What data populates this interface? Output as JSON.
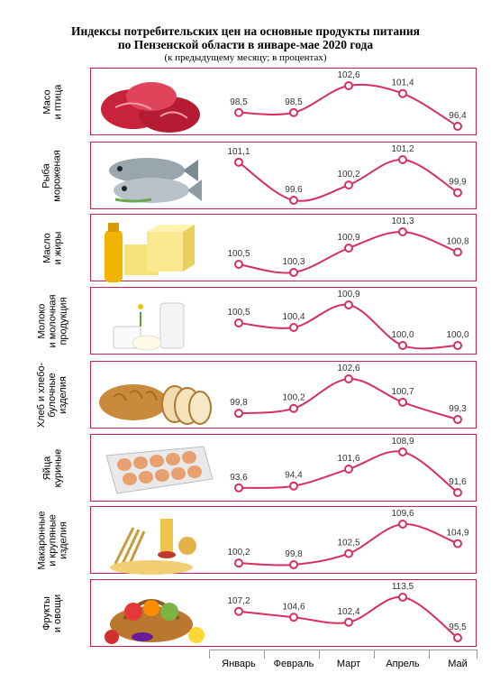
{
  "title_line1": "Индексы потребительских цен на основные продукты питания",
  "title_line2": "по Пензенской области в январе-мае 2020 года",
  "subtitle": "(к предыдущему месяцу; в процентах)",
  "colors": {
    "line": "#d6305f",
    "border": "#c8234f"
  },
  "chart_data": {
    "type": "line",
    "categories": [
      "Январь",
      "Февраль",
      "Март",
      "Апрель",
      "Май"
    ],
    "series": [
      {
        "name": "Масо\nи птица",
        "values": [
          98.5,
          98.5,
          102.6,
          101.4,
          96.4
        ],
        "labels": [
          "98,5",
          "98,5",
          "102,6",
          "101,4",
          "96,4"
        ],
        "icon": "meat-icon"
      },
      {
        "name": "Рыба\nмороженая",
        "values": [
          101.1,
          99.6,
          100.2,
          101.2,
          99.9
        ],
        "labels": [
          "101,1",
          "99,6",
          "100,2",
          "101,2",
          "99,9"
        ],
        "icon": "fish-icon"
      },
      {
        "name": "Масло\nи жиры",
        "values": [
          100.5,
          100.3,
          100.9,
          101.3,
          100.8
        ],
        "labels": [
          "100,5",
          "100,3",
          "100,9",
          "101,3",
          "100,8"
        ],
        "icon": "butter-oil-icon"
      },
      {
        "name": "Молоко\nи молочная\nпродукция",
        "values": [
          100.5,
          100.4,
          100.9,
          100.0,
          100.0
        ],
        "labels": [
          "100,5",
          "100,4",
          "100,9",
          "100,0",
          "100,0"
        ],
        "icon": "milk-icon"
      },
      {
        "name": "Хлеб и хлебо-\nбулочные\nизделия",
        "values": [
          99.8,
          100.2,
          102.6,
          100.7,
          99.3
        ],
        "labels": [
          "99,8",
          "100,2",
          "102,6",
          "100,7",
          "99,3"
        ],
        "icon": "bread-icon"
      },
      {
        "name": "Яйца\nкуриные",
        "values": [
          93.6,
          94.4,
          101.6,
          108.9,
          91.6
        ],
        "labels": [
          "93,6",
          "94,4",
          "101,6",
          "108,9",
          "91,6"
        ],
        "icon": "eggs-icon"
      },
      {
        "name": "Макаронные\nи крупяные\nизделия",
        "values": [
          100.2,
          99.8,
          102.5,
          109.6,
          104.9
        ],
        "labels": [
          "100,2",
          "99,8",
          "102,5",
          "109,6",
          "104,9"
        ],
        "icon": "pasta-icon"
      },
      {
        "name": "Фрукты\nи овощи",
        "values": [
          107.2,
          104.6,
          102.4,
          113.5,
          95.5
        ],
        "labels": [
          "107,2",
          "104,6",
          "102,4",
          "113,5",
          "95,5"
        ],
        "icon": "fruits-vegetables-icon"
      }
    ]
  }
}
